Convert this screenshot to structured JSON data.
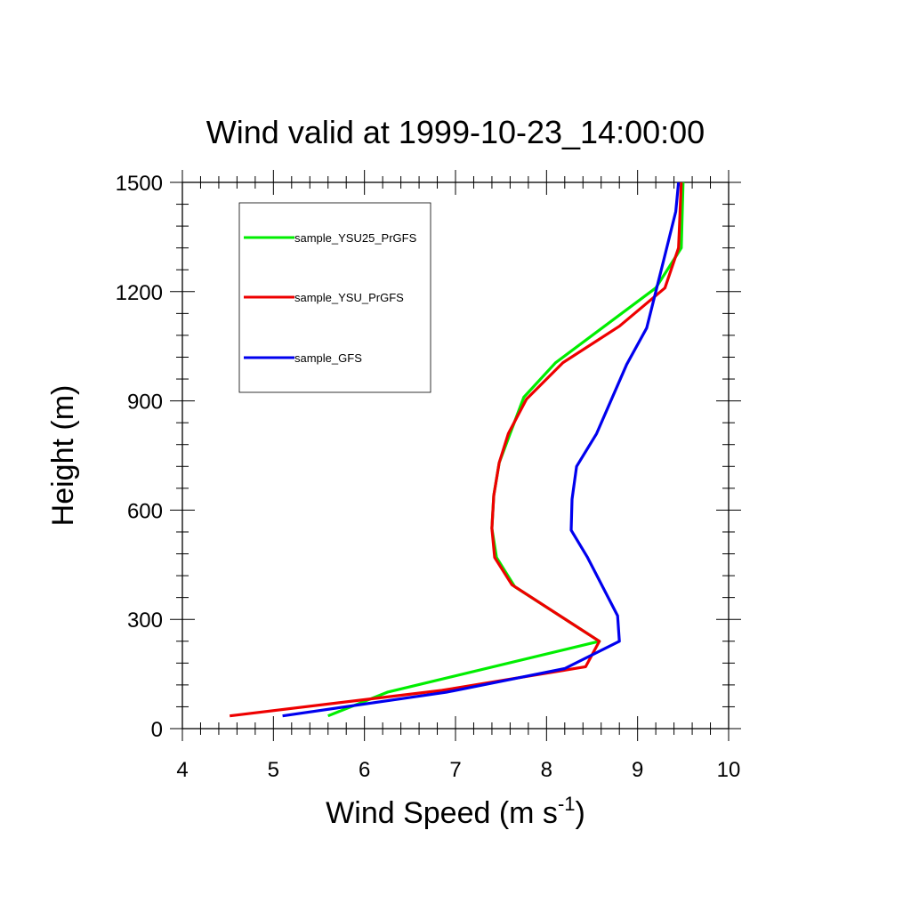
{
  "chart_data": {
    "type": "line",
    "title": "Wind valid at 1999-10-23_14:00:00",
    "xlabel": "Wind Speed (m s",
    "xlabel_sup": "-1",
    "xlabel_close": ")",
    "ylabel": "Height (m)",
    "xlim": [
      4,
      10
    ],
    "ylim": [
      0,
      1500
    ],
    "x_ticks": [
      4,
      5,
      6,
      7,
      8,
      9,
      10
    ],
    "y_ticks": [
      0,
      300,
      600,
      900,
      1200,
      1500
    ],
    "x_tick_labels": [
      "4",
      "5",
      "6",
      "7",
      "8",
      "9",
      "10"
    ],
    "y_tick_labels": [
      "0",
      "300",
      "600",
      "900",
      "1200",
      "1500"
    ],
    "grid": false,
    "legend_position": "top-left",
    "series": [
      {
        "name": "sample_YSU25_PrGFS",
        "color": "#00ee00",
        "points": [
          [
            5.6,
            35
          ],
          [
            6.25,
            100
          ],
          [
            8.58,
            240
          ],
          [
            7.65,
            390
          ],
          [
            7.45,
            470
          ],
          [
            7.4,
            550
          ],
          [
            7.42,
            640
          ],
          [
            7.48,
            730
          ],
          [
            7.6,
            810
          ],
          [
            7.75,
            910
          ],
          [
            8.1,
            1005
          ],
          [
            9.2,
            1210
          ],
          [
            9.48,
            1320
          ],
          [
            9.5,
            1500
          ]
        ]
      },
      {
        "name": "sample_YSU_PrGFS",
        "color": "#ee0000",
        "points": [
          [
            4.52,
            35
          ],
          [
            6.85,
            105
          ],
          [
            8.43,
            170
          ],
          [
            8.58,
            240
          ],
          [
            7.62,
            395
          ],
          [
            7.43,
            470
          ],
          [
            7.4,
            550
          ],
          [
            7.42,
            640
          ],
          [
            7.48,
            730
          ],
          [
            7.58,
            810
          ],
          [
            7.78,
            905
          ],
          [
            8.18,
            1005
          ],
          [
            8.8,
            1105
          ],
          [
            9.3,
            1210
          ],
          [
            9.45,
            1320
          ],
          [
            9.48,
            1500
          ]
        ]
      },
      {
        "name": "sample_GFS",
        "color": "#0000ee",
        "points": [
          [
            5.1,
            35
          ],
          [
            6.9,
            100
          ],
          [
            8.2,
            165
          ],
          [
            8.8,
            240
          ],
          [
            8.78,
            310
          ],
          [
            8.45,
            470
          ],
          [
            8.27,
            545
          ],
          [
            8.28,
            630
          ],
          [
            8.33,
            720
          ],
          [
            8.55,
            810
          ],
          [
            8.88,
            1000
          ],
          [
            9.1,
            1100
          ],
          [
            9.3,
            1300
          ],
          [
            9.42,
            1420
          ],
          [
            9.45,
            1500
          ]
        ]
      }
    ]
  }
}
